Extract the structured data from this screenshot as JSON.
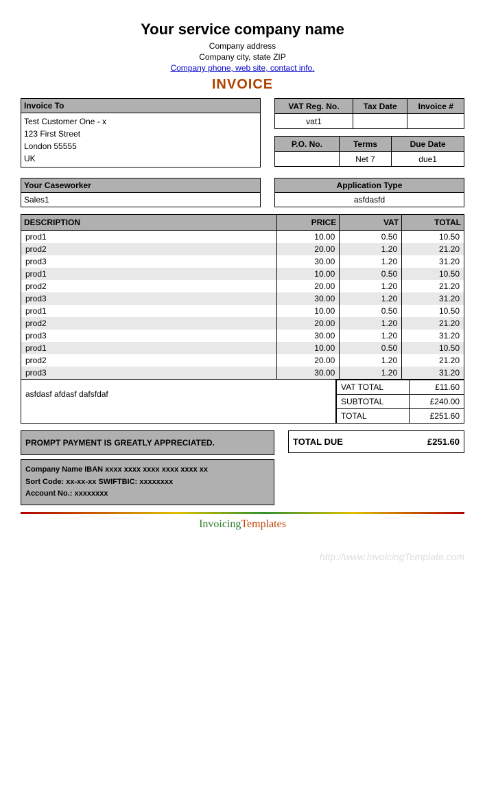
{
  "header": {
    "company_name": "Your service company name",
    "address": "Company address",
    "city_state_zip": "Company city, state ZIP",
    "contact_link": "Company phone, web site, contact info.",
    "title": "INVOICE"
  },
  "invoice_to": {
    "label": "Invoice To",
    "lines": [
      "Test Customer One - x",
      "123 First Street",
      "London 55555",
      "UK"
    ]
  },
  "meta1": {
    "headers": [
      "VAT Reg. No.",
      "Tax Date",
      "Invoice #"
    ],
    "values": [
      "vat1",
      "",
      ""
    ]
  },
  "meta2": {
    "headers": [
      "P.O. No.",
      "Terms",
      "Due Date"
    ],
    "values": [
      "",
      "Net 7",
      "due1"
    ]
  },
  "caseworker": {
    "label": "Your Caseworker",
    "value": "Sales1"
  },
  "app_type": {
    "label": "Application Type",
    "value": "asfdasfd"
  },
  "items": {
    "columns": [
      "DESCRIPTION",
      "PRICE",
      "VAT",
      "TOTAL"
    ],
    "rows": [
      [
        "prod1",
        "10.00",
        "0.50",
        "10.50"
      ],
      [
        "prod2",
        "20.00",
        "1.20",
        "21.20"
      ],
      [
        "prod3",
        "30.00",
        "1.20",
        "31.20"
      ],
      [
        "prod1",
        "10.00",
        "0.50",
        "10.50"
      ],
      [
        "prod2",
        "20.00",
        "1.20",
        "21.20"
      ],
      [
        "prod3",
        "30.00",
        "1.20",
        "31.20"
      ],
      [
        "prod1",
        "10.00",
        "0.50",
        "10.50"
      ],
      [
        "prod2",
        "20.00",
        "1.20",
        "21.20"
      ],
      [
        "prod3",
        "30.00",
        "1.20",
        "31.20"
      ],
      [
        "prod1",
        "10.00",
        "0.50",
        "10.50"
      ],
      [
        "prod2",
        "20.00",
        "1.20",
        "21.20"
      ],
      [
        "prod3",
        "30.00",
        "1.20",
        "31.20"
      ]
    ]
  },
  "notes": "asfdasf afdasf dafsfdaf",
  "totals": {
    "vat_total_label": "VAT TOTAL",
    "vat_total": "£11.60",
    "subtotal_label": "SUBTOTAL",
    "subtotal": "£240.00",
    "total_label": "TOTAL",
    "total": "£251.60"
  },
  "payment_msg": "PROMPT PAYMENT IS GREATLY APPRECIATED.",
  "bank": {
    "line1": "Company Name   IBAN xxxx xxxx xxxx xxxx xxxx xx",
    "line2": "Sort Code: xx-xx-xx  SWIFTBIC: xxxxxxxx",
    "line3": "Account No.: xxxxxxxx"
  },
  "total_due": {
    "label": "TOTAL DUE",
    "value": "£251.60"
  },
  "footer": {
    "logo1": "Invoicing",
    "logo2": "Templates",
    "watermark": "http://www.InvoicingTemplate.com"
  },
  "styling": {
    "header_bg": "#b0b0b0",
    "row_alt_bg": "#e8e8e8",
    "border_color": "#000000",
    "title_color": "#b04000",
    "link_color": "#0000cc",
    "base_font_size": 12,
    "company_name_font_size": 22,
    "title_font_size": 20
  }
}
